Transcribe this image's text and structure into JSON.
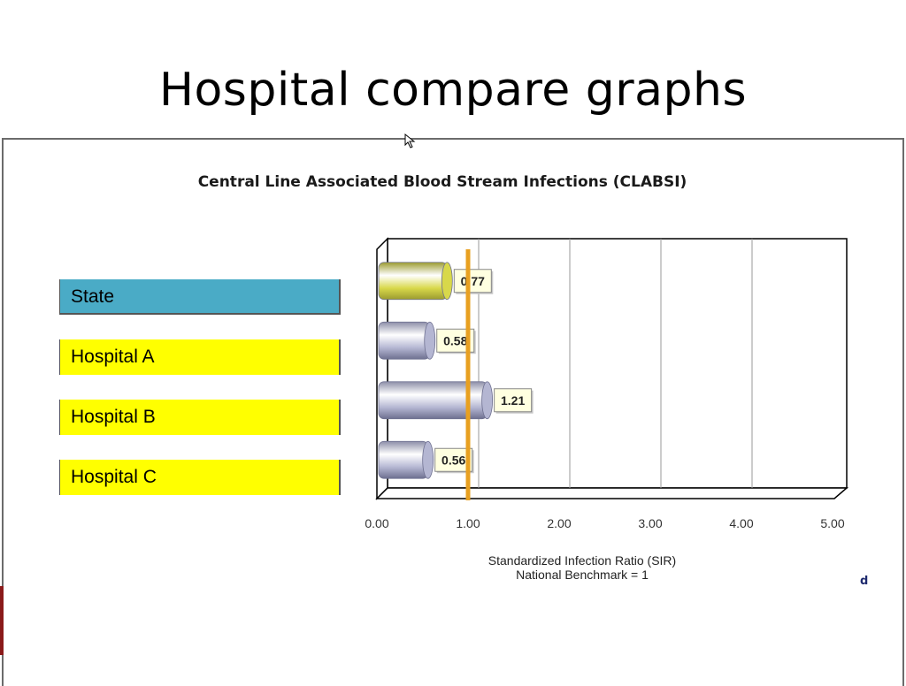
{
  "slide": {
    "title": "Hospital compare graphs",
    "corner_mark": "d"
  },
  "legend": [
    {
      "label": "State",
      "color": "#4aabc6"
    },
    {
      "label": "Hospital A",
      "color": "#ffff00"
    },
    {
      "label": "Hospital B",
      "color": "#ffff00"
    },
    {
      "label": "Hospital C",
      "color": "#ffff00"
    }
  ],
  "chart_data": {
    "type": "bar",
    "orientation": "horizontal",
    "title": "Central Line Associated Blood Stream Infections (CLABSI)",
    "xlabel": "Standardized Infection Ratio (SIR)",
    "xlabel_note": "National Benchmark = 1",
    "categories": [
      "State",
      "Hospital A",
      "Hospital B",
      "Hospital C"
    ],
    "values": [
      0.77,
      0.58,
      1.21,
      0.56
    ],
    "value_labels": [
      "0.77",
      "0.58",
      "1.21",
      "0.56"
    ],
    "bar_colors": [
      "#d8d84a",
      "#b4b6d2",
      "#b4b6d2",
      "#b4b6d2"
    ],
    "xlim": [
      0,
      5
    ],
    "xticks": [
      "0.00",
      "1.00",
      "2.00",
      "3.00",
      "4.00",
      "5.00"
    ],
    "benchmark": 1,
    "benchmark_color": "#e8a020",
    "grid": true
  }
}
